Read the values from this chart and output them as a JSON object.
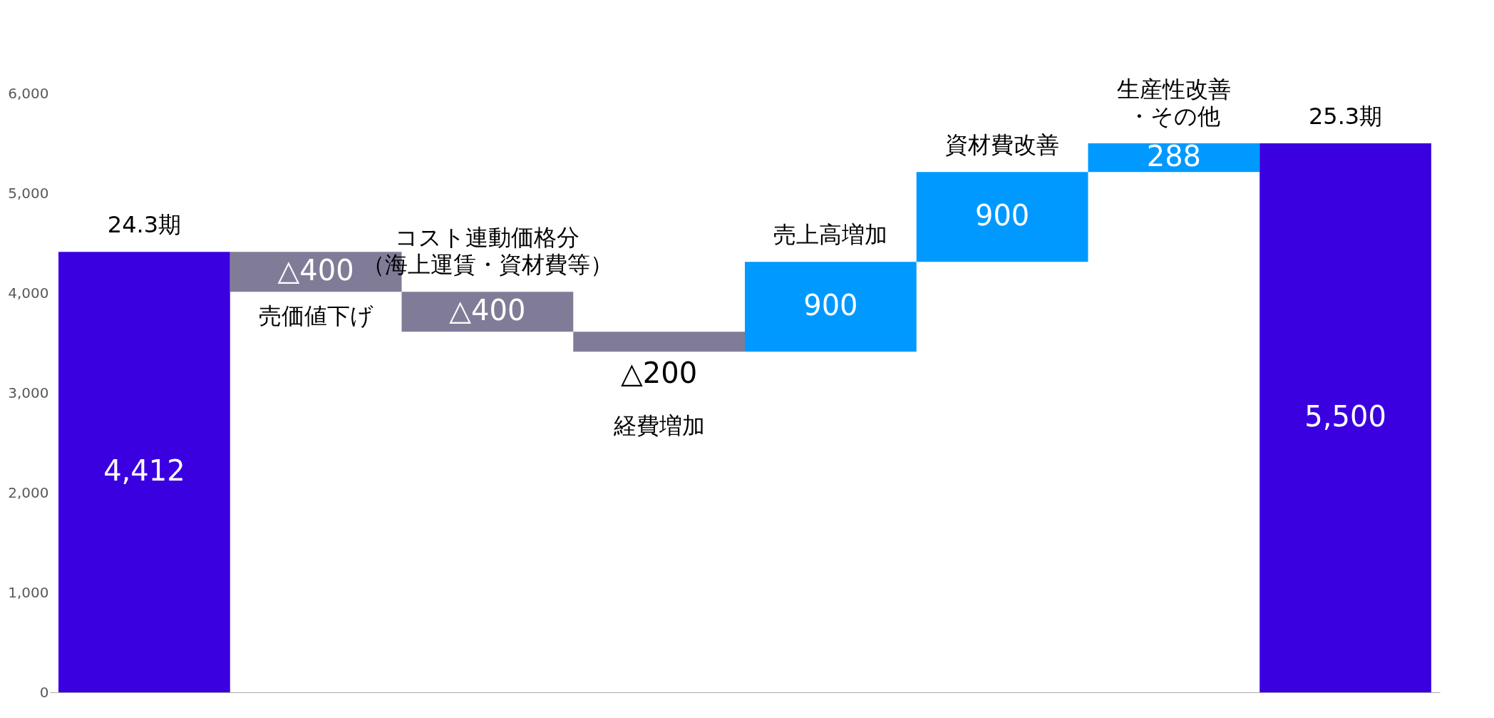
{
  "chart_data": {
    "type": "bar",
    "categories": [
      "24.3期",
      "売価値下げ",
      "コスト連動価格分（海上運賃・資材費等）",
      "経費増加",
      "売上高増加",
      "資材費改善",
      "生産性改善・その他",
      "25.3期"
    ],
    "values": [
      4412,
      -400,
      -400,
      -200,
      900,
      900,
      288,
      5500
    ],
    "base": [
      0,
      4412,
      4012,
      3612,
      3412,
      4312,
      5212,
      0
    ],
    "colors": [
      "#3a00e0",
      "#807c98",
      "#807c98",
      "#807c98",
      "#0099ff",
      "#0099ff",
      "#0099ff",
      "#3a00e0"
    ],
    "value_labels": [
      "4,412",
      "△400",
      "△400",
      "△200",
      "900",
      "900",
      "288",
      "5,500"
    ],
    "ylim": [
      0,
      6000
    ],
    "yticks": [
      0,
      {
        "value": 1000,
        "label": "1,000"
      },
      {
        "value": 2000,
        "label": "2,000"
      },
      {
        "value": 3000,
        "label": "3,000"
      },
      {
        "value": 4000,
        "label": "4,000"
      },
      {
        "value": 5000,
        "label": "5,000"
      },
      {
        "value": 6000,
        "label": "6,000"
      }
    ],
    "grid": false,
    "legend": false
  }
}
